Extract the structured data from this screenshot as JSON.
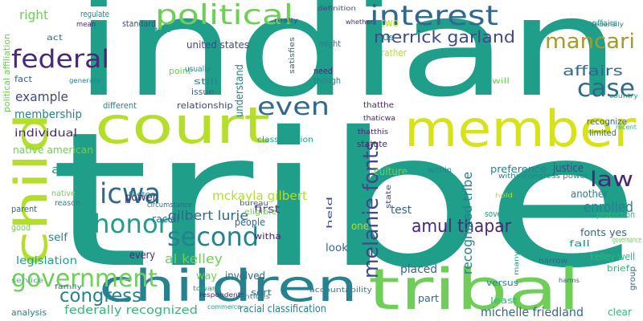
{
  "words": [
    "tribe",
    "indian",
    "court",
    "member",
    "children",
    "tribal",
    "child",
    "political",
    "federal",
    "interest",
    "mancari",
    "case",
    "affairs",
    "merrick garland",
    "right",
    "example",
    "membership",
    "individual",
    "native american",
    "allow",
    "government",
    "congress",
    "federally recognized",
    "legislation",
    "icwa",
    "honor",
    "second",
    "even",
    "melanie fonts",
    "amul thapar",
    "law",
    "enrolled",
    "mckayla gilbert",
    "gilbert lurie",
    "al kelley",
    "recognized tribe",
    "michelle friedland",
    "justice",
    "preference",
    "culture",
    "test",
    "placed",
    "kelley well",
    "fonts yes",
    "another",
    "limited",
    "recognize",
    "part",
    "two",
    "rather",
    "regulate",
    "mean",
    "act",
    "standard",
    "united states",
    "power",
    "racial",
    "first",
    "witha",
    "every",
    "way",
    "involved",
    "relationship",
    "issue",
    "still",
    "understand",
    "racial classification",
    "look",
    "one",
    "different",
    "reason",
    "native",
    "parent",
    "good",
    "self",
    "analysis",
    "sort",
    "need",
    "though",
    "might",
    "us",
    "classification",
    "within",
    "sovereign",
    "will",
    "fall",
    "protection",
    "political affiliation",
    "satisfies",
    "statute",
    "indianaffairs",
    "thatthe",
    "thaticwa",
    "thatthis",
    "point",
    "usually",
    "fact",
    "generally",
    "factor",
    "circumstance",
    "people",
    "eligible",
    "bureau",
    "held",
    "state",
    "brief",
    "narrow",
    "versus",
    "least",
    "accountability",
    "commerce",
    "respondents",
    "service",
    "family",
    "toward",
    "entities",
    "definition",
    "whether",
    "really",
    "take",
    "federally",
    "country",
    "recent",
    "hold",
    "many",
    "harms",
    "governance",
    "group",
    "clear",
    "withincongress power"
  ]
}
